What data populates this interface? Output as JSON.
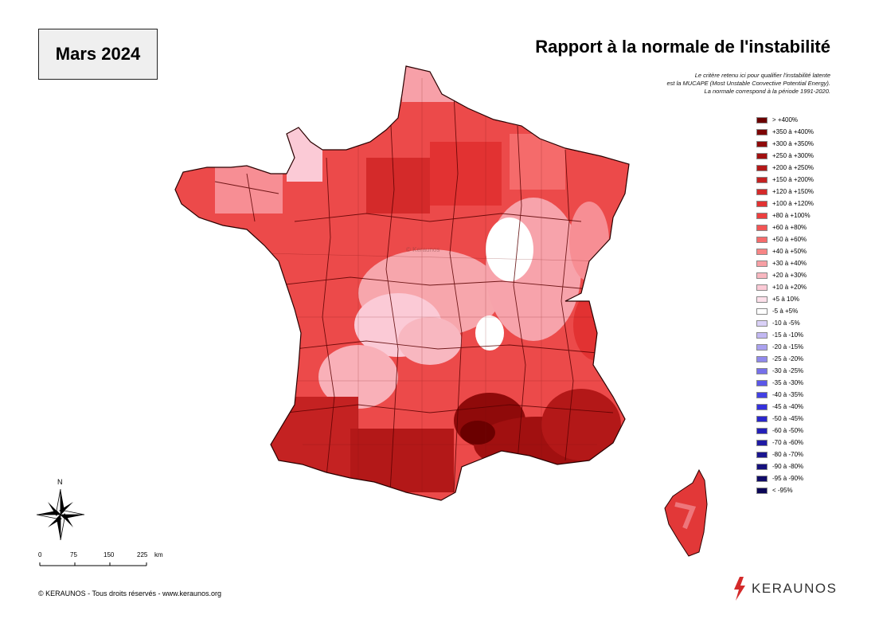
{
  "header": {
    "month": "Mars 2024",
    "title": "Rapport à la normale de l'instabilité",
    "subtitle_lines": [
      "Le critère retenu ici pour qualifier l'instabilité latente",
      "est la MUCAPE (Most Unstable Convective Potential Energy).",
      "La normale correspond à la période 1991-2020."
    ]
  },
  "legend": [
    {
      "label": "> +400%",
      "color": "#6b0000"
    },
    {
      "label": "+350 à +400%",
      "color": "#7d0505"
    },
    {
      "label": "+300 à +350%",
      "color": "#8f0a0a"
    },
    {
      "label": "+250 à +300%",
      "color": "#a11010"
    },
    {
      "label": "+200 à +250%",
      "color": "#b31818"
    },
    {
      "label": "+150 à +200%",
      "color": "#c42222"
    },
    {
      "label": "+120 à +150%",
      "color": "#d42a2a"
    },
    {
      "label": "+100 à +120%",
      "color": "#e23232"
    },
    {
      "label": "+80 à +100%",
      "color": "#ec3f3f"
    },
    {
      "label": "+60 à +80%",
      "color": "#f25555"
    },
    {
      "label": "+50 à +60%",
      "color": "#f56b6b"
    },
    {
      "label": "+40 à +50%",
      "color": "#f78585"
    },
    {
      "label": "+30 à +40%",
      "color": "#f79fa4"
    },
    {
      "label": "+20 à +30%",
      "color": "#f8b7c0"
    },
    {
      "label": "+10 à +20%",
      "color": "#fbcad6"
    },
    {
      "label": "+5 à 10%",
      "color": "#fde0ea"
    },
    {
      "label": "-5 à +5%",
      "color": "#ffffff"
    },
    {
      "label": "-10 à -5%",
      "color": "#d9d0f7"
    },
    {
      "label": "-15 à -10%",
      "color": "#c2b8f3"
    },
    {
      "label": "-20 à -15%",
      "color": "#aaa1ef"
    },
    {
      "label": "-25 à -20%",
      "color": "#9089ec"
    },
    {
      "label": "-30 à -25%",
      "color": "#7670ea"
    },
    {
      "label": "-35 à -30%",
      "color": "#5b57e8"
    },
    {
      "label": "-40 à -35%",
      "color": "#4341e4"
    },
    {
      "label": "-45 à -40%",
      "color": "#3430dc"
    },
    {
      "label": "-50 à -45%",
      "color": "#2a26cc"
    },
    {
      "label": "-60 à -50%",
      "color": "#2420b8"
    },
    {
      "label": "-70 à -60%",
      "color": "#1f1aa4"
    },
    {
      "label": "-80 à -70%",
      "color": "#1a1590"
    },
    {
      "label": "-90 à -80%",
      "color": "#15107c"
    },
    {
      "label": "-95 à -90%",
      "color": "#100b68"
    },
    {
      "label": "< -95%",
      "color": "#0b0656"
    }
  ],
  "compass": {
    "north_label": "N"
  },
  "scale": {
    "ticks": [
      "0",
      "75",
      "150",
      "225"
    ],
    "unit": "km"
  },
  "footer": {
    "copyright": "© KERAUNOS - Tous droits réservés - www.keraunos.org",
    "logo_text": "KERAUNOS"
  },
  "watermark": "© Keraunos"
}
